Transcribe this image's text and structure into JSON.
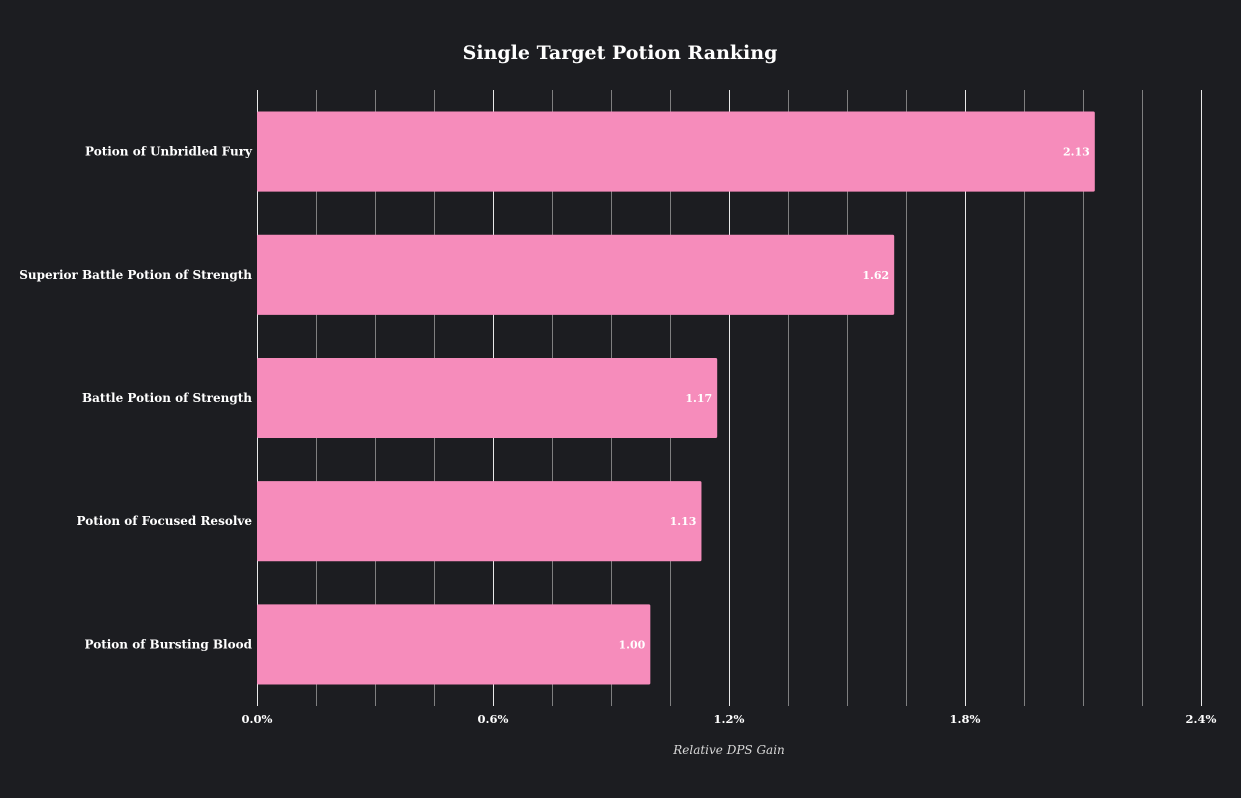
{
  "chart_data": {
    "type": "bar",
    "orientation": "horizontal",
    "title": "Single Target Potion Ranking",
    "xlabel": "Relative DPS Gain",
    "ylabel": "",
    "categories": [
      "Potion of Unbridled Fury",
      "Superior Battle Potion of Strength",
      "Battle Potion of Strength",
      "Potion of Focused Resolve",
      "Potion of Bursting Blood"
    ],
    "values": [
      2.13,
      1.62,
      1.17,
      1.13,
      1.0
    ],
    "value_labels": [
      "2.13",
      "1.62",
      "1.17",
      "1.13",
      "1.00"
    ],
    "xlim": [
      0,
      2.4
    ],
    "x_ticks": [
      0,
      0.6,
      1.2,
      1.8,
      2.4
    ],
    "x_tick_labels": [
      "0.0%",
      "0.6%",
      "1.2%",
      "1.8%",
      "2.4%"
    ],
    "minor_gridline_step": 0.15,
    "grid": true,
    "legend": "none",
    "colors": {
      "background": "#1c1d21",
      "bar": "#f68cbb",
      "major_grid": "#ffffff",
      "minor_grid": "#aaaaaa",
      "text": "#ffffff"
    }
  }
}
